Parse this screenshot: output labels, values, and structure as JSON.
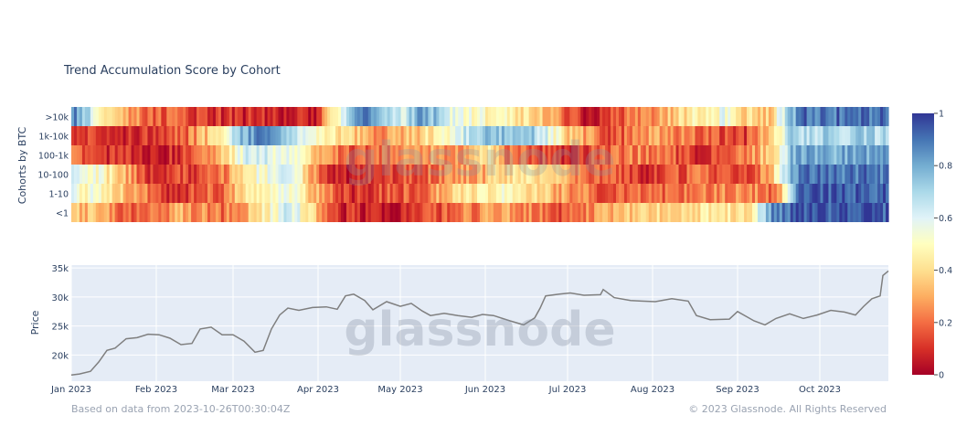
{
  "chart_data": [
    {
      "type": "heatmap",
      "title": "Trend Accumulation Score by Cohort",
      "ylabel": "Cohorts by BTC",
      "rows": [
        ">10k",
        "1k-10k",
        "100-1k",
        "10-100",
        "1-10",
        "<1"
      ],
      "colorscale": {
        "min": 0,
        "max": 1,
        "stops": [
          "#a50026",
          "#d73027",
          "#f46d43",
          "#fdae61",
          "#fee090",
          "#ffffbf",
          "#e0f3f8",
          "#abd9e9",
          "#74add1",
          "#4575b4",
          "#313695"
        ],
        "ticks": [
          "0",
          "0.2",
          "0.4",
          "0.6",
          "0.8",
          "1"
        ]
      },
      "segments": [
        [
          [
            0,
            0.9
          ],
          [
            8,
            0.6
          ],
          [
            15,
            0.35
          ],
          [
            28,
            0.2
          ],
          [
            55,
            0.1
          ],
          [
            88,
            0.05
          ],
          [
            100,
            0.65
          ],
          [
            107,
            0.85
          ],
          [
            120,
            0.6
          ],
          [
            128,
            0.85
          ],
          [
            138,
            0.6
          ],
          [
            150,
            0.5
          ],
          [
            162,
            0.45
          ],
          [
            172,
            0.35
          ],
          [
            188,
            0.05
          ],
          [
            215,
            0.3
          ],
          [
            228,
            0.45
          ],
          [
            238,
            0.55
          ],
          [
            246,
            0.4
          ],
          [
            255,
            0.35
          ],
          [
            262,
            0.75
          ],
          [
            268,
            0.9
          ]
        ],
        [
          [
            0,
            0.15
          ],
          [
            15,
            0.08
          ],
          [
            42,
            0.2
          ],
          [
            52,
            0.4
          ],
          [
            60,
            0.75
          ],
          [
            70,
            0.9
          ],
          [
            88,
            0.55
          ],
          [
            100,
            0.4
          ],
          [
            112,
            0.25
          ],
          [
            126,
            0.35
          ],
          [
            140,
            0.55
          ],
          [
            148,
            0.75
          ],
          [
            168,
            0.75
          ],
          [
            182,
            0.35
          ],
          [
            198,
            0.15
          ],
          [
            212,
            0.3
          ],
          [
            230,
            0.2
          ],
          [
            245,
            0.1
          ],
          [
            255,
            0.35
          ],
          [
            262,
            0.7
          ]
        ],
        [
          [
            0,
            0.2
          ],
          [
            10,
            0.12
          ],
          [
            32,
            0.05
          ],
          [
            52,
            0.25
          ],
          [
            65,
            0.65
          ],
          [
            80,
            0.55
          ],
          [
            92,
            0.25
          ],
          [
            104,
            0.15
          ],
          [
            130,
            0.3
          ],
          [
            140,
            0.25
          ],
          [
            152,
            0.45
          ],
          [
            160,
            0.2
          ],
          [
            180,
            0.1
          ],
          [
            208,
            0.25
          ],
          [
            230,
            0.1
          ],
          [
            248,
            0.25
          ],
          [
            258,
            0.45
          ],
          [
            264,
            0.8
          ]
        ],
        [
          [
            0,
            0.6
          ],
          [
            10,
            0.5
          ],
          [
            18,
            0.35
          ],
          [
            28,
            0.1
          ],
          [
            52,
            0.15
          ],
          [
            66,
            0.5
          ],
          [
            80,
            0.6
          ],
          [
            88,
            0.3
          ],
          [
            96,
            0.05
          ],
          [
            120,
            0.15
          ],
          [
            148,
            0.3
          ],
          [
            168,
            0.45
          ],
          [
            176,
            0.35
          ],
          [
            188,
            0.2
          ],
          [
            210,
            0.1
          ],
          [
            232,
            0.2
          ],
          [
            244,
            0.1
          ],
          [
            255,
            0.3
          ],
          [
            262,
            0.75
          ],
          [
            266,
            0.9
          ]
        ],
        [
          [
            0,
            0.55
          ],
          [
            8,
            0.5
          ],
          [
            22,
            0.3
          ],
          [
            35,
            0.1
          ],
          [
            55,
            0.2
          ],
          [
            65,
            0.45
          ],
          [
            78,
            0.6
          ],
          [
            88,
            0.35
          ],
          [
            100,
            0.1
          ],
          [
            128,
            0.2
          ],
          [
            142,
            0.4
          ],
          [
            160,
            0.5
          ],
          [
            178,
            0.3
          ],
          [
            195,
            0.15
          ],
          [
            220,
            0.2
          ],
          [
            248,
            0.25
          ],
          [
            258,
            0.2
          ],
          [
            263,
            0.7
          ],
          [
            266,
            0.95
          ]
        ],
        [
          [
            0,
            0.35
          ],
          [
            10,
            0.3
          ],
          [
            22,
            0.15
          ],
          [
            40,
            0.3
          ],
          [
            55,
            0.2
          ],
          [
            68,
            0.4
          ],
          [
            80,
            0.65
          ],
          [
            88,
            0.35
          ],
          [
            96,
            0.1
          ],
          [
            118,
            0.05
          ],
          [
            140,
            0.2
          ],
          [
            160,
            0.3
          ],
          [
            178,
            0.15
          ],
          [
            198,
            0.3
          ],
          [
            218,
            0.4
          ],
          [
            248,
            0.45
          ],
          [
            256,
            0.85
          ],
          [
            266,
            0.95
          ]
        ]
      ]
    },
    {
      "type": "line",
      "ylabel": "Price",
      "x_ticks": [
        "Jan 2023",
        "Feb 2023",
        "Mar 2023",
        "Apr 2023",
        "May 2023",
        "Jun 2023",
        "Jul 2023",
        "Aug 2023",
        "Sep 2023",
        "Oct 2023"
      ],
      "y_ticks": [
        "20k",
        "25k",
        "30k",
        "35k"
      ],
      "x_start": "2023-01-01",
      "x_end": "2023-10-26",
      "ylim": [
        15500,
        35500
      ],
      "line_color": "#7f7f7f",
      "series": [
        {
          "x": [
            "2023-01-01",
            "2023-01-04",
            "2023-01-08",
            "2023-01-11",
            "2023-01-14",
            "2023-01-17",
            "2023-01-21",
            "2023-01-25",
            "2023-01-29",
            "2023-02-02",
            "2023-02-06",
            "2023-02-10",
            "2023-02-14",
            "2023-02-17",
            "2023-02-21",
            "2023-02-25",
            "2023-03-01",
            "2023-03-05",
            "2023-03-09",
            "2023-03-12",
            "2023-03-15",
            "2023-03-18",
            "2023-03-21",
            "2023-03-25",
            "2023-03-30",
            "2023-04-04",
            "2023-04-08",
            "2023-04-11",
            "2023-04-14",
            "2023-04-18",
            "2023-04-21",
            "2023-04-26",
            "2023-05-01",
            "2023-05-05",
            "2023-05-09",
            "2023-05-12",
            "2023-05-17",
            "2023-05-22",
            "2023-05-27",
            "2023-05-31",
            "2023-06-04",
            "2023-06-10",
            "2023-06-15",
            "2023-06-19",
            "2023-06-21",
            "2023-06-23",
            "2023-06-28",
            "2023-07-02",
            "2023-07-07",
            "2023-07-13",
            "2023-07-14",
            "2023-07-18",
            "2023-07-24",
            "2023-07-28",
            "2023-08-02",
            "2023-08-08",
            "2023-08-14",
            "2023-08-17",
            "2023-08-22",
            "2023-08-29",
            "2023-09-01",
            "2023-09-07",
            "2023-09-11",
            "2023-09-15",
            "2023-09-20",
            "2023-09-25",
            "2023-09-30",
            "2023-10-05",
            "2023-10-10",
            "2023-10-14",
            "2023-10-17",
            "2023-10-20",
            "2023-10-23",
            "2023-10-24",
            "2023-10-26"
          ],
          "y": [
            16550,
            16750,
            17200,
            18800,
            20800,
            21200,
            22800,
            23000,
            23600,
            23500,
            22900,
            21800,
            22000,
            24500,
            24800,
            23500,
            23500,
            22400,
            20500,
            20800,
            24500,
            26900,
            28100,
            27700,
            28200,
            28300,
            27900,
            30200,
            30500,
            29400,
            27800,
            29200,
            28400,
            28900,
            27600,
            26800,
            27200,
            26800,
            26500,
            27000,
            26800,
            25900,
            25200,
            26400,
            28100,
            30200,
            30500,
            30700,
            30300,
            30400,
            31300,
            29900,
            29400,
            29300,
            29200,
            29700,
            29300,
            26800,
            26100,
            26200,
            27500,
            25900,
            25200,
            26300,
            27100,
            26300,
            26900,
            27700,
            27400,
            26900,
            28400,
            29700,
            30200,
            33700,
            34500
          ]
        }
      ]
    }
  ],
  "footer": {
    "source_note": "Based on data from 2023-10-26T00:30:04Z",
    "copyright": "© 2023 Glassnode. All Rights Reserved"
  },
  "watermark": "glassnode"
}
